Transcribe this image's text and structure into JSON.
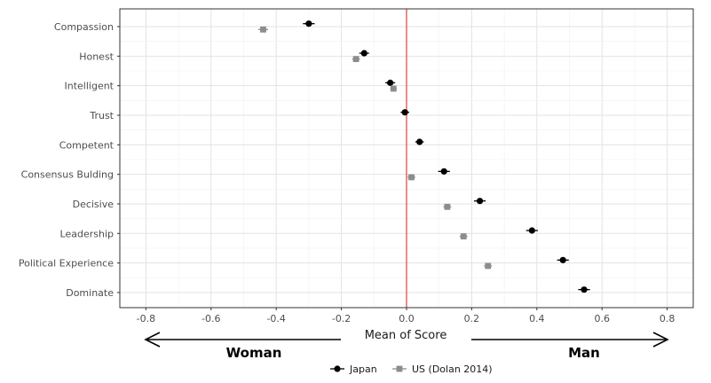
{
  "chart_data": {
    "type": "scatter",
    "categories": [
      "Compassion",
      "Honest",
      "Intelligent",
      "Trust",
      "Competent",
      "Consensus Bulding",
      "Decisive",
      "Leadership",
      "Political Experience",
      "Dominate"
    ],
    "series": [
      {
        "name": "Japan",
        "marker": "circle",
        "color": "#000000",
        "values": [
          -0.3,
          -0.13,
          -0.05,
          -0.005,
          0.04,
          0.115,
          0.225,
          0.385,
          0.48,
          0.545
        ],
        "error": [
          0.018,
          0.015,
          0.015,
          0.013,
          0.013,
          0.018,
          0.018,
          0.018,
          0.018,
          0.018
        ]
      },
      {
        "name": "US (Dolan 2014)",
        "marker": "square",
        "color": "#8c8c8c",
        "values": [
          -0.44,
          -0.155,
          -0.04,
          null,
          null,
          0.015,
          0.125,
          0.175,
          0.25,
          null
        ],
        "error": [
          0.015,
          0.012,
          0.01,
          null,
          null,
          0.012,
          0.012,
          0.012,
          0.012,
          null
        ]
      }
    ],
    "xlabel": "Mean of Score",
    "xlim": [
      -0.88,
      0.88
    ],
    "x_ticks": [
      -0.8,
      -0.6,
      -0.4,
      -0.2,
      0.0,
      0.2,
      0.4,
      0.6,
      0.8
    ],
    "x_tick_labels": [
      "-0.8",
      "-0.6",
      "-0.4",
      "-0.2",
      "0.0",
      "0.2",
      "0.4",
      "0.6",
      "0.8"
    ],
    "reference_line": {
      "x": 0,
      "color": "#e0504a"
    },
    "grid": true,
    "legend_position": "bottom",
    "direction_labels": {
      "left": "Woman",
      "right": "Man"
    }
  }
}
